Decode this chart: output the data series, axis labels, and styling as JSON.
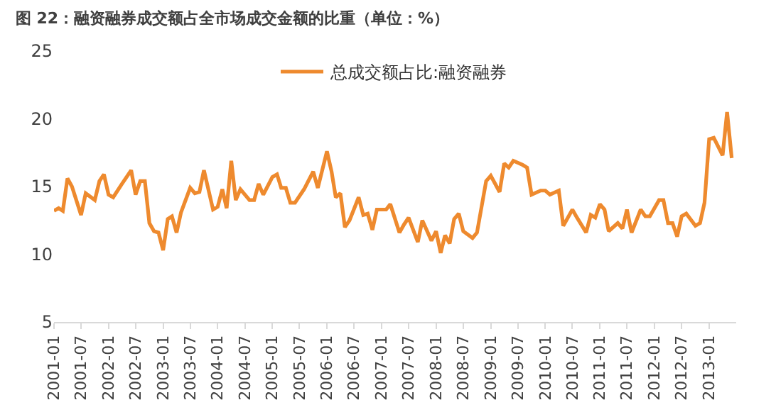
{
  "chart_data": {
    "type": "line",
    "title": "图 22：融资融券成交额占全市场成交金额的比重（单位：%）",
    "x": [
      "2001-01",
      "2001-02",
      "2001-03",
      "2001-04",
      "2001-05",
      "2001-07",
      "2001-08",
      "2001-10",
      "2001-11",
      "2001-12",
      "2002-01",
      "2002-02",
      "2002-04",
      "2002-06",
      "2002-07",
      "2002-08",
      "2002-09",
      "2002-10",
      "2002-11",
      "2002-12",
      "2003-01",
      "2003-02",
      "2003-03",
      "2003-04",
      "2003-05",
      "2003-07",
      "2003-08",
      "2003-09",
      "2003-10",
      "2003-12",
      "2004-01",
      "2004-02",
      "2004-03",
      "2004-04",
      "2004-05",
      "2004-06",
      "2004-08",
      "2004-09",
      "2004-10",
      "2004-11",
      "2005-01",
      "2005-02",
      "2005-03",
      "2005-04",
      "2005-05",
      "2005-06",
      "2005-08",
      "2005-10",
      "2005-11",
      "2006-01",
      "2006-02",
      "2006-03",
      "2006-04",
      "2006-05",
      "2006-06",
      "2006-08",
      "2006-09",
      "2006-10",
      "2006-11",
      "2006-12",
      "2007-02",
      "2007-03",
      "2007-05",
      "2007-06",
      "2007-07",
      "2007-09",
      "2007-10",
      "2007-12",
      "2008-01",
      "2008-02",
      "2008-03",
      "2008-04",
      "2008-05",
      "2008-06",
      "2008-07",
      "2008-09",
      "2008-10",
      "2008-12",
      "2009-01",
      "2009-03",
      "2009-04",
      "2009-05",
      "2009-06",
      "2009-08",
      "2009-09",
      "2009-10",
      "2009-12",
      "2010-01",
      "2010-02",
      "2010-04",
      "2010-05",
      "2010-07",
      "2010-08",
      "2010-10",
      "2010-11",
      "2010-12",
      "2011-01",
      "2011-02",
      "2011-03",
      "2011-05",
      "2011-06",
      "2011-07",
      "2011-08",
      "2011-10",
      "2011-11",
      "2011-12",
      "2012-02",
      "2012-03",
      "2012-04",
      "2012-05",
      "2012-06",
      "2012-07",
      "2012-08",
      "2012-10",
      "2012-11",
      "2012-12",
      "2013-01",
      "2013-02",
      "2013-04",
      "2013-05",
      "2013-06"
    ],
    "series": [
      {
        "name": "总成交额占比:融资融券",
        "color": "#ee8a2e",
        "values": [
          13.2,
          13.4,
          13.2,
          15.6,
          15.0,
          12.9,
          14.5,
          14.0,
          15.4,
          15.9,
          14.4,
          14.2,
          15.2,
          16.2,
          14.4,
          15.4,
          15.4,
          12.3,
          11.7,
          11.6,
          10.3,
          12.6,
          12.8,
          11.6,
          13.1,
          14.9,
          14.5,
          14.6,
          16.2,
          13.3,
          13.5,
          14.8,
          13.4,
          16.9,
          14.0,
          14.8,
          14.0,
          14.0,
          15.2,
          14.4,
          15.7,
          15.9,
          14.9,
          14.9,
          13.8,
          13.8,
          14.8,
          16.1,
          14.9,
          17.6,
          16.1,
          14.2,
          14.5,
          12.0,
          12.5,
          14.2,
          12.9,
          13.0,
          11.8,
          13.3,
          13.3,
          13.7,
          11.6,
          12.2,
          12.7,
          10.9,
          12.5,
          11.0,
          11.7,
          10.1,
          11.4,
          10.8,
          12.6,
          13.0,
          11.7,
          11.2,
          11.6,
          15.4,
          15.8,
          14.6,
          16.7,
          16.4,
          16.9,
          16.6,
          16.4,
          14.4,
          14.7,
          14.7,
          14.4,
          14.7,
          12.1,
          13.3,
          12.7,
          11.6,
          12.9,
          12.7,
          13.7,
          13.3,
          11.7,
          12.3,
          11.9,
          13.3,
          11.6,
          13.3,
          12.8,
          12.8,
          14.0,
          14.0,
          12.3,
          12.3,
          11.3,
          12.8,
          13.0,
          12.1,
          12.3,
          13.8,
          18.5,
          18.6,
          17.3,
          20.5,
          17.1
        ]
      }
    ],
    "xlim": [
      "2001-01",
      "2013-07"
    ],
    "xticks": [
      "2001-01",
      "2001-07",
      "2002-01",
      "2002-07",
      "2003-01",
      "2003-07",
      "2004-01",
      "2004-07",
      "2005-01",
      "2005-07",
      "2006-01",
      "2006-07",
      "2007-01",
      "2007-07",
      "2008-01",
      "2008-07",
      "2009-01",
      "2009-07",
      "2010-01",
      "2010-07",
      "2011-01",
      "2011-07",
      "2012-01",
      "2012-07",
      "2013-01"
    ],
    "ylim": [
      5,
      25
    ],
    "yticks": [
      5,
      10,
      15,
      20,
      25
    ],
    "legend": "top",
    "marker": "none",
    "line_style": "solid"
  }
}
